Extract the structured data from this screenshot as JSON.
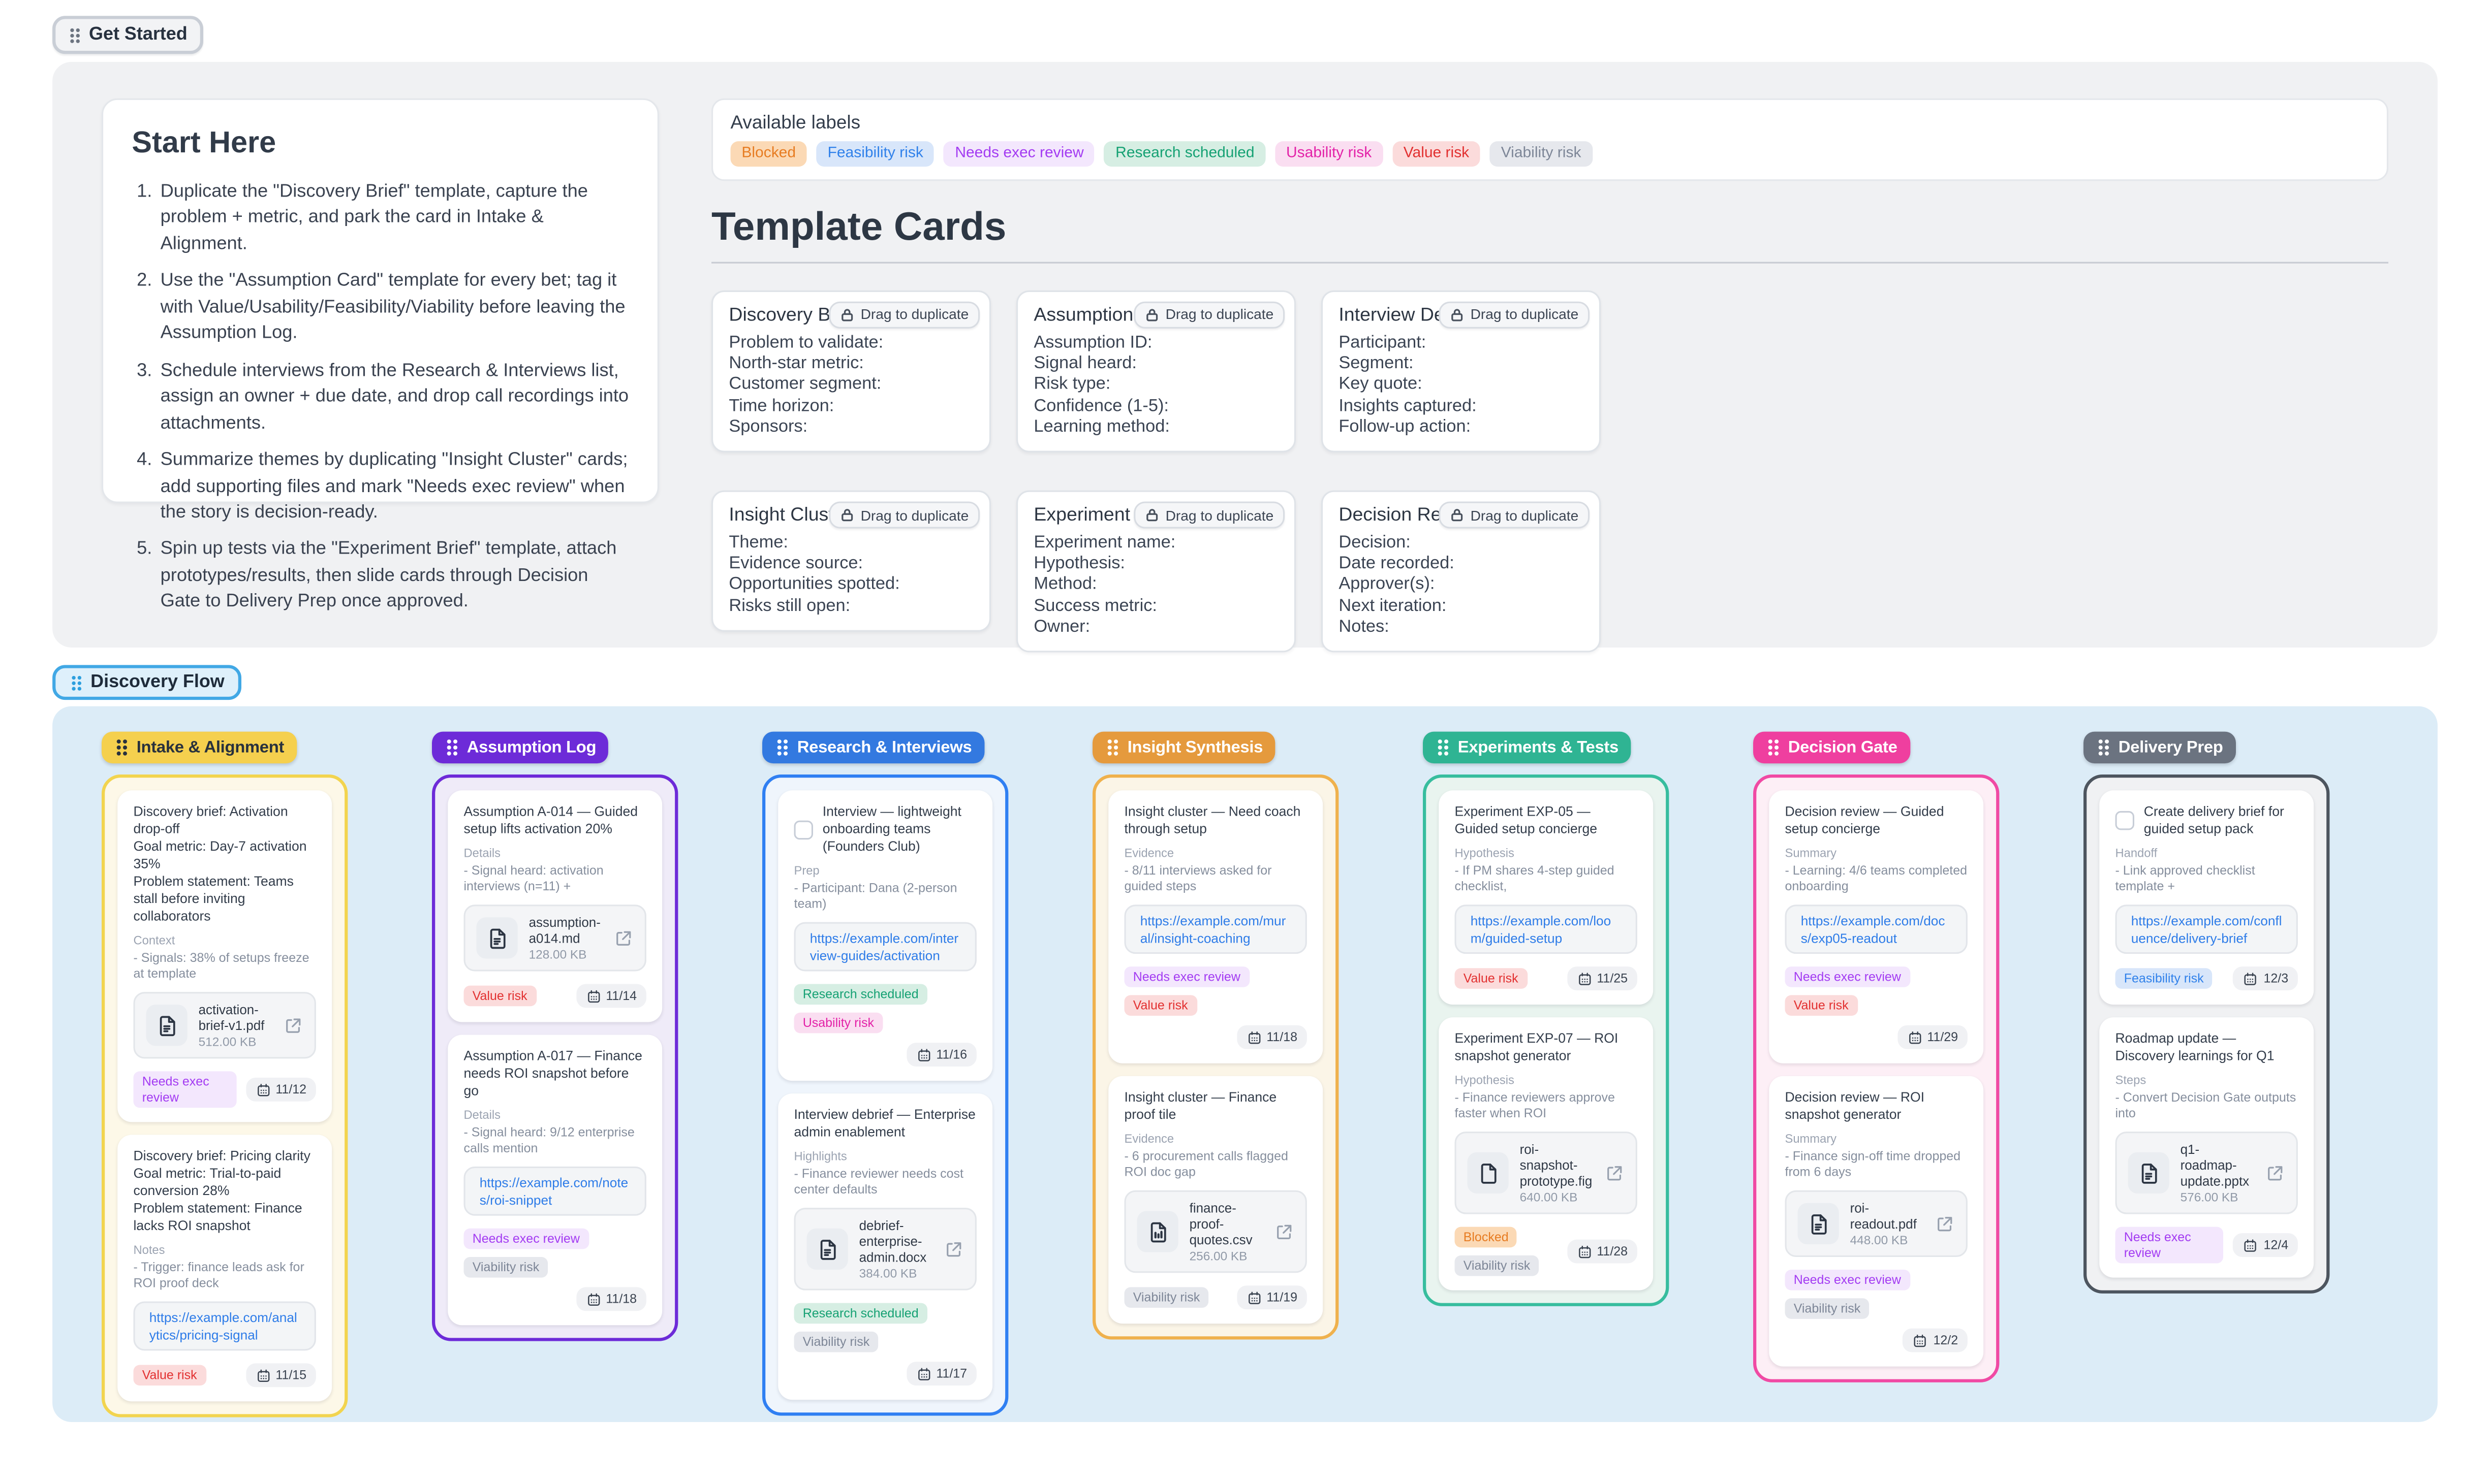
{
  "page": {
    "get_started": "Get Started",
    "flow_title": "Discovery Flow"
  },
  "start_here": {
    "title": "Start Here",
    "steps": [
      "Duplicate the \"Discovery Brief\" template, capture the problem + metric, and park the card in Intake & Alignment.",
      "Use the \"Assumption Card\" template for every bet; tag it with Value/Usability/Feasibility/Viability before leaving the Assumption Log.",
      "Schedule interviews from the Research & Interviews list, assign an owner + due date, and drop call recordings into attachments.",
      "Summarize themes by duplicating \"Insight Cluster\" cards; add supporting files and mark \"Needs exec review\" when the story is decision-ready.",
      "Spin up tests via the \"Experiment Brief\" template, attach prototypes/results, then slide cards through Decision Gate to Delivery Prep once approved."
    ]
  },
  "available_labels": {
    "title": "Available labels",
    "names": [
      "Blocked",
      "Feasibility risk",
      "Needs exec review",
      "Research scheduled",
      "Usability risk",
      "Value risk",
      "Viability risk"
    ]
  },
  "label_styles": {
    "Blocked": {
      "bg": "#fbd9b5",
      "color": "#e77c22"
    },
    "Feasibility risk": {
      "bg": "#d8e6fa",
      "color": "#3081ea"
    },
    "Needs exec review": {
      "bg": "#f3e7fd",
      "color": "#a33bf2"
    },
    "Research scheduled": {
      "bg": "#d6eee3",
      "color": "#15a173"
    },
    "Usability risk": {
      "bg": "#fadef1",
      "color": "#e322a8"
    },
    "Value risk": {
      "bg": "#fbdbdb",
      "color": "#e23030"
    },
    "Viability risk": {
      "bg": "#e6e8ed",
      "color": "#7d8697"
    }
  },
  "template_section": {
    "heading": "Template Cards",
    "drag_badge": "Drag to duplicate",
    "cards": [
      {
        "title": "Discovery Brief",
        "fields": [
          "Problem to validate:",
          "North-star metric:",
          "Customer segment:",
          "Time horizon:",
          "Sponsors:"
        ]
      },
      {
        "title": "Assumption Card",
        "fields": [
          "Assumption ID:",
          "Signal heard:",
          "Risk type:",
          "Confidence (1-5):",
          "Learning method:"
        ]
      },
      {
        "title": "Interview Debrief",
        "fields": [
          "Participant:",
          "Segment:",
          "Key quote:",
          "Insights captured:",
          "Follow-up action:"
        ]
      },
      {
        "title": "Insight Cluster",
        "fields": [
          "Theme:",
          "Evidence source:",
          "Opportunities spotted:",
          "Risks still open:"
        ]
      },
      {
        "title": "Experiment Brief",
        "fields": [
          "Experiment name:",
          "Hypothesis:",
          "Method:",
          "Success metric:",
          "Owner:"
        ]
      },
      {
        "title": "Decision Record",
        "fields": [
          "Decision:",
          "Date recorded:",
          "Approver(s):",
          "Next iteration:",
          "Notes:"
        ]
      }
    ]
  },
  "board": {
    "columns": [
      {
        "name": "Intake & Alignment",
        "header_bg": "#f5d04e",
        "header_fg": "#28313d",
        "body_bg": "#fdf8e8",
        "border": "#f2d44f",
        "cards": [
          {
            "title_lines": [
              "Discovery brief: Activation drop-off",
              "Goal metric: Day-7 activation 35%",
              "Problem statement: Teams stall before inviting collaborators"
            ],
            "section": "Context",
            "detail": "- Signals: 38% of setups freeze at template",
            "attachment": {
              "name": "activation-brief-v1.pdf",
              "size": "512.00 KB",
              "icon": "file-text"
            },
            "labels": [
              "Needs exec review"
            ],
            "date": "11/12",
            "date_inline": true,
            "checkbox": false
          },
          {
            "title_lines": [
              "Discovery brief: Pricing clarity",
              "Goal metric: Trial-to-paid conversion 28%",
              "Problem statement: Finance lacks ROI snapshot"
            ],
            "section": "Notes",
            "detail": "- Trigger: finance leads ask for ROI proof deck",
            "link": "https://example.com/analytics/pricing-signal",
            "labels": [
              "Value risk"
            ],
            "date": "11/15",
            "date_inline": true,
            "checkbox": false
          }
        ]
      },
      {
        "name": "Assumption Log",
        "header_bg": "#6d2bd8",
        "header_fg": "#ffffff",
        "body_bg": "#efebf8",
        "border": "#6d2bd8",
        "cards": [
          {
            "title_lines": [
              "Assumption A-014 — Guided setup lifts activation 20%"
            ],
            "section": "Details",
            "detail": "- Signal heard: activation interviews (n=11) +",
            "attachment": {
              "name": "assumption-a014.md",
              "size": "128.00 KB",
              "icon": "file-text"
            },
            "labels": [
              "Value risk"
            ],
            "date": "11/14",
            "date_inline": true,
            "checkbox": false
          },
          {
            "title_lines": [
              "Assumption A-017 — Finance needs ROI snapshot before go"
            ],
            "section": "Details",
            "detail": "- Signal heard: 9/12 enterprise calls mention",
            "link": "https://example.com/notes/roi-snippet",
            "labels": [
              "Needs exec review",
              "Viability risk"
            ],
            "date": "11/18",
            "date_inline": false,
            "checkbox": false
          }
        ]
      },
      {
        "name": "Research & Interviews",
        "header_bg": "#3379e0",
        "header_fg": "#ffffff",
        "body_bg": "#eff5fc",
        "border": "#2f7ff2",
        "cards": [
          {
            "title_lines": [
              "Interview — lightweight onboarding teams (Founders Club)"
            ],
            "section": "Prep",
            "detail": "- Participant: Dana (2-person team)",
            "link": "https://example.com/interview-guides/activation",
            "labels": [
              "Research scheduled",
              "Usability risk"
            ],
            "date": "11/16",
            "date_inline": false,
            "checkbox": true
          },
          {
            "title_lines": [
              "Interview debrief — Enterprise admin enablement"
            ],
            "section": "Highlights",
            "detail": "- Finance reviewer needs cost center defaults",
            "attachment": {
              "name": "debrief-enterprise-admin.docx",
              "size": "384.00 KB",
              "icon": "file-text"
            },
            "labels": [
              "Research scheduled",
              "Viability risk"
            ],
            "date": "11/17",
            "date_inline": false,
            "checkbox": false
          }
        ]
      },
      {
        "name": "Insight Synthesis",
        "header_bg": "#e59a3d",
        "header_fg": "#ffffff",
        "body_bg": "#fbf5e7",
        "border": "#efb14d",
        "cards": [
          {
            "title_lines": [
              "Insight cluster — Need coach through setup"
            ],
            "section": "Evidence",
            "detail": "- 8/11 interviews asked for guided steps",
            "link": "https://example.com/mural/insight-coaching",
            "labels": [
              "Needs exec review",
              "Value risk"
            ],
            "date": "11/18",
            "date_inline": false,
            "checkbox": false
          },
          {
            "title_lines": [
              "Insight cluster — Finance proof tile"
            ],
            "section": "Evidence",
            "detail": "- 6 procurement calls flagged ROI doc gap",
            "attachment": {
              "name": "finance-proof-quotes.csv",
              "size": "256.00 KB",
              "icon": "file-table"
            },
            "labels": [
              "Viability risk"
            ],
            "date": "11/19",
            "date_inline": true,
            "checkbox": false
          }
        ]
      },
      {
        "name": "Experiments & Tests",
        "header_bg": "#2fb493",
        "header_fg": "#ffffff",
        "body_bg": "#e9f4ef",
        "border": "#37bd9e",
        "cards": [
          {
            "title_lines": [
              "Experiment EXP-05 — Guided setup concierge"
            ],
            "section": "Hypothesis",
            "detail": "- If PM shares 4-step guided checklist,",
            "link": "https://example.com/loom/guided-setup",
            "labels": [
              "Value risk"
            ],
            "date": "11/25",
            "date_inline": true,
            "checkbox": false
          },
          {
            "title_lines": [
              "Experiment EXP-07 — ROI snapshot generator"
            ],
            "section": "Hypothesis",
            "detail": "- Finance reviewers approve faster when ROI",
            "attachment": {
              "name": "roi-snapshot-prototype.fig",
              "size": "640.00 KB",
              "icon": "file-plain"
            },
            "labels": [
              "Blocked",
              "Viability risk"
            ],
            "date": "11/28",
            "date_inline": true,
            "checkbox": false
          }
        ]
      },
      {
        "name": "Decision Gate",
        "header_bg": "#ef3f9f",
        "header_fg": "#ffffff",
        "body_bg": "#fdeff6",
        "border": "#f04aa4",
        "cards": [
          {
            "title_lines": [
              "Decision review — Guided setup concierge"
            ],
            "section": "Summary",
            "detail": "- Learning: 4/6 teams completed onboarding",
            "link": "https://example.com/docs/exp05-readout",
            "labels": [
              "Needs exec review",
              "Value risk"
            ],
            "date": "11/29",
            "date_inline": false,
            "checkbox": false
          },
          {
            "title_lines": [
              "Decision review — ROI snapshot generator"
            ],
            "section": "Summary",
            "detail": "- Finance sign-off time dropped from 6 days",
            "attachment": {
              "name": "roi-readout.pdf",
              "size": "448.00 KB",
              "icon": "file-text"
            },
            "labels": [
              "Needs exec review",
              "Viability risk"
            ],
            "date": "12/2",
            "date_inline": false,
            "checkbox": false
          }
        ]
      },
      {
        "name": "Delivery Prep",
        "header_bg": "#6b7380",
        "header_fg": "#ffffff",
        "body_bg": "#f0f1f3",
        "border": "#4d555f",
        "cards": [
          {
            "title_lines": [
              "Create delivery brief for guided setup pack"
            ],
            "section": "Handoff",
            "detail": "- Link approved checklist template +",
            "link": "https://example.com/confluence/delivery-brief",
            "labels": [
              "Feasibility risk"
            ],
            "date": "12/3",
            "date_inline": true,
            "checkbox": true
          },
          {
            "title_lines": [
              "Roadmap update — Discovery learnings for Q1"
            ],
            "section": "Steps",
            "detail": "- Convert Decision Gate outputs into",
            "attachment": {
              "name": "q1-roadmap-update.pptx",
              "size": "576.00 KB",
              "icon": "file-text"
            },
            "labels": [
              "Needs exec review"
            ],
            "date": "12/4",
            "date_inline": true,
            "checkbox": false
          }
        ]
      }
    ]
  }
}
